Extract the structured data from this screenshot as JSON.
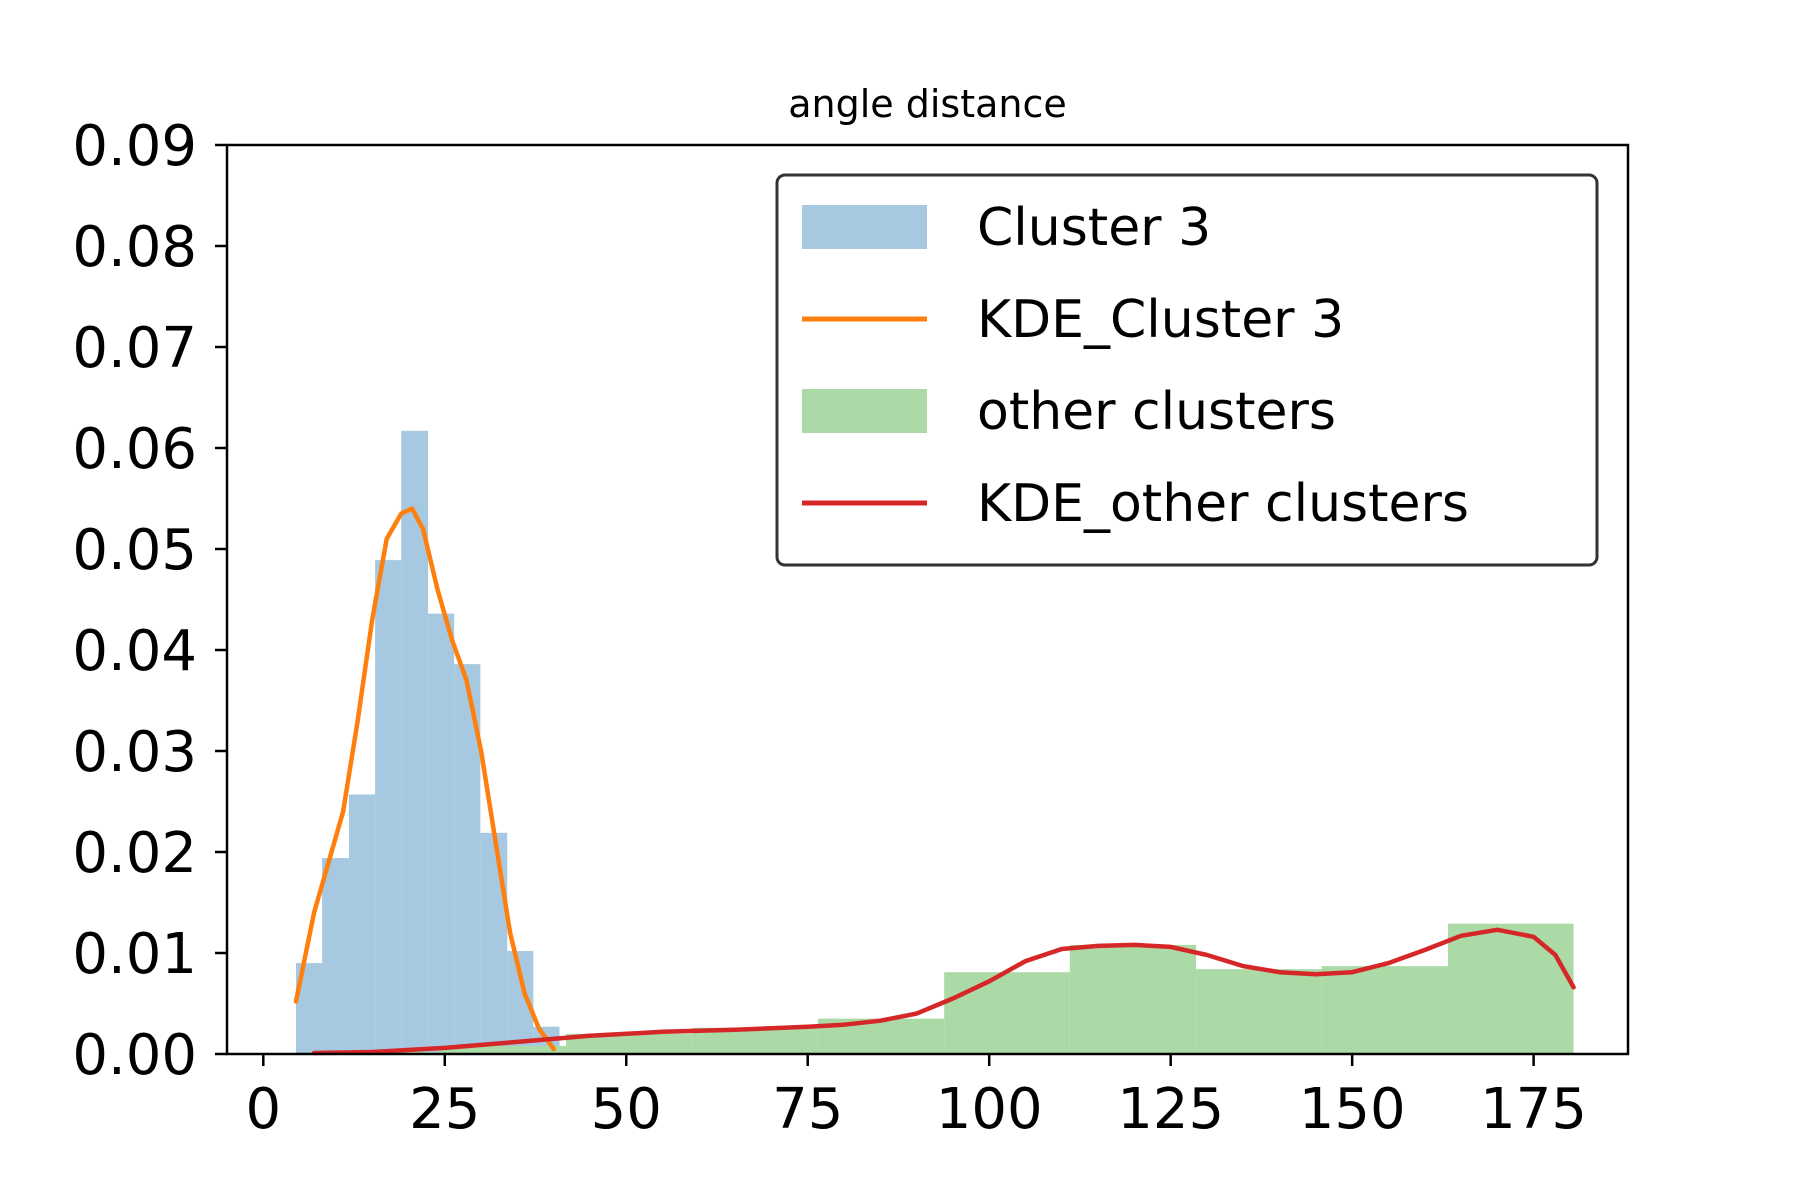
{
  "chart_data": {
    "type": "bar",
    "title": "angle distance",
    "xlabel": "",
    "ylabel": "",
    "xlim": [
      -5,
      188
    ],
    "ylim": [
      0,
      0.09
    ],
    "xticks": [
      0,
      25,
      50,
      75,
      100,
      125,
      150,
      175
    ],
    "yticks": [
      0.0,
      0.01,
      0.02,
      0.03,
      0.04,
      0.05,
      0.06,
      0.07,
      0.08,
      0.09
    ],
    "grid": false,
    "legend_position": "top-right",
    "colors": {
      "cluster_hist": "#a6c8e0",
      "cluster_kde": "#ff7f0e",
      "other_hist": "#abdaa6",
      "other_kde": "#d62728"
    },
    "series": [
      {
        "name": "Cluster 3",
        "kind": "histogram",
        "bin_edges": [
          4.5,
          8.1,
          11.8,
          15.4,
          19.0,
          22.7,
          26.3,
          29.9,
          33.6,
          37.2,
          40.8
        ],
        "values": [
          0.009,
          0.0194,
          0.0257,
          0.0489,
          0.0617,
          0.0436,
          0.0386,
          0.0219,
          0.0102,
          0.0027
        ]
      },
      {
        "name": "KDE_Cluster 3",
        "kind": "line",
        "x": [
          4.5,
          7,
          9,
          11,
          13,
          15,
          17,
          19,
          20.5,
          22,
          24,
          26,
          28,
          30,
          32,
          34,
          36,
          38,
          40
        ],
        "y": [
          0.0052,
          0.014,
          0.019,
          0.024,
          0.033,
          0.043,
          0.051,
          0.0535,
          0.054,
          0.052,
          0.046,
          0.041,
          0.037,
          0.03,
          0.021,
          0.012,
          0.006,
          0.0025,
          0.0005
        ]
      },
      {
        "name": "other clusters",
        "kind": "histogram",
        "bin_edges": [
          7.0,
          24.4,
          41.7,
          59.1,
          76.4,
          93.8,
          111.1,
          128.5,
          145.8,
          163.2,
          180.5
        ],
        "values": [
          0.0002,
          0.0008,
          0.002,
          0.0026,
          0.0035,
          0.0081,
          0.0108,
          0.0084,
          0.0087,
          0.0129
        ]
      },
      {
        "name": "KDE_other clusters",
        "kind": "line",
        "x": [
          7,
          15,
          25,
          35,
          45,
          55,
          65,
          75,
          80,
          85,
          90,
          95,
          100,
          105,
          110,
          115,
          120,
          125,
          130,
          135,
          140,
          145,
          150,
          155,
          160,
          165,
          170,
          175,
          178,
          180.5
        ],
        "y": [
          0.0001,
          0.0002,
          0.0006,
          0.0012,
          0.0018,
          0.0022,
          0.0024,
          0.0027,
          0.0029,
          0.0033,
          0.004,
          0.0055,
          0.0072,
          0.0092,
          0.0104,
          0.0107,
          0.0108,
          0.0106,
          0.0098,
          0.0087,
          0.0081,
          0.0079,
          0.0081,
          0.009,
          0.0103,
          0.0117,
          0.0123,
          0.0116,
          0.0098,
          0.0066
        ]
      }
    ]
  }
}
